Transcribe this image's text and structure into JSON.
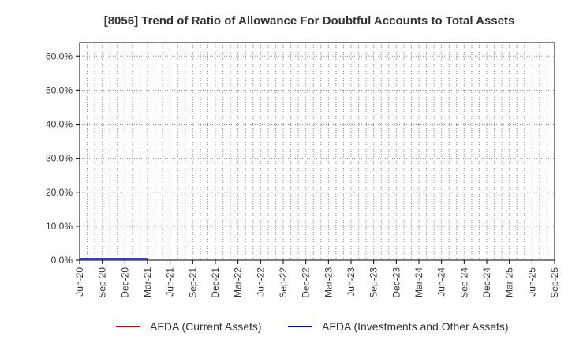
{
  "chart_data": {
    "type": "line",
    "title": "[8056]  Trend of Ratio of Allowance For Doubtful Accounts to Total Assets",
    "xlabel": "",
    "ylabel": "",
    "categories": [
      "Jun-20",
      "Sep-20",
      "Dec-20",
      "Mar-21",
      "Jun-21",
      "Sep-21",
      "Dec-21",
      "Mar-22",
      "Jun-22",
      "Sep-22",
      "Dec-22",
      "Mar-23",
      "Jun-23",
      "Sep-23",
      "Dec-23",
      "Mar-24",
      "Jun-24",
      "Sep-24",
      "Dec-24",
      "Mar-25",
      "Jun-25",
      "Sep-25"
    ],
    "yticks": [
      "0.0%",
      "10.0%",
      "20.0%",
      "30.0%",
      "40.0%",
      "50.0%",
      "60.0%"
    ],
    "ylim": [
      0,
      64
    ],
    "grid": true,
    "legend_position": "bottom",
    "series": [
      {
        "name": "AFDA (Current Assets)",
        "color": "#dd0000",
        "values": [
          null,
          null,
          null,
          null,
          null,
          null,
          null,
          null,
          null,
          null,
          null,
          null,
          null,
          null,
          null,
          null,
          null,
          null,
          null,
          null,
          null,
          null
        ]
      },
      {
        "name": "AFDA (Investments and Other Assets)",
        "color": "#0000cc",
        "values": [
          0.4,
          0.4,
          0.4,
          0.4,
          null,
          null,
          null,
          null,
          null,
          null,
          null,
          null,
          null,
          null,
          null,
          null,
          null,
          null,
          null,
          null,
          null,
          null
        ]
      }
    ]
  }
}
